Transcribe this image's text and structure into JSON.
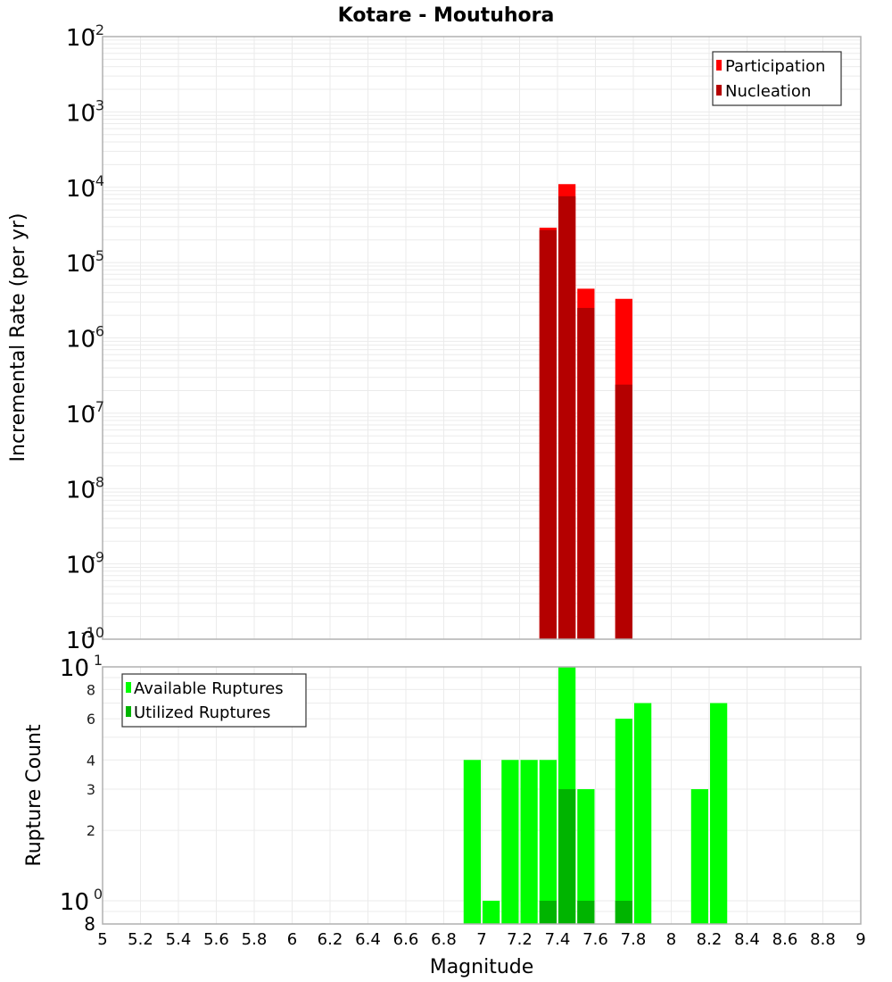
{
  "chart_data": [
    {
      "type": "bar",
      "title": "Kotare - Moutuhora",
      "xlabel": "Magnitude",
      "ylabel": "Incremental Rate (per yr)",
      "yscale": "log",
      "ylim": [
        1e-10,
        0.01
      ],
      "xlim": [
        5,
        9
      ],
      "grid": true,
      "legend_position": "top-right",
      "y_tick_labels": [
        "10^-2",
        "10^-3",
        "10^-4",
        "10^-5",
        "10^-6",
        "10^-7",
        "10^-8",
        "10^-9",
        "10^-10"
      ],
      "x": [
        7.35,
        7.45,
        7.55,
        7.75
      ],
      "series": [
        {
          "name": "Participation",
          "color": "#ff0000",
          "values": [
            2.9e-05,
            0.00011,
            4.5e-06,
            3.3e-06
          ]
        },
        {
          "name": "Nucleation",
          "color": "#b40000",
          "values": [
            2.7e-05,
            7.6e-05,
            2.5e-06,
            2.4e-07
          ]
        }
      ]
    },
    {
      "type": "bar",
      "title": "",
      "xlabel": "Magnitude",
      "ylabel": "Rupture Count",
      "yscale": "log",
      "ylim": [
        0.8,
        10
      ],
      "xlim": [
        5,
        9
      ],
      "grid": true,
      "legend_position": "top-left",
      "y_tick_labels": [
        "10^1",
        "8",
        "6",
        "4",
        "3",
        "2",
        "10^0",
        "8"
      ],
      "x": [
        6.95,
        7.05,
        7.15,
        7.25,
        7.35,
        7.45,
        7.55,
        7.75,
        7.85,
        8.15,
        8.25
      ],
      "series": [
        {
          "name": "Available Ruptures",
          "color": "#00ff00",
          "values": [
            4,
            1,
            4,
            4,
            4,
            10,
            3,
            6,
            7,
            3,
            7
          ]
        },
        {
          "name": "Utilized Ruptures",
          "color": "#00b400",
          "values": [
            0,
            0,
            0,
            0,
            1,
            3,
            1,
            1,
            0,
            0,
            0
          ]
        }
      ]
    }
  ],
  "x_ticks": [
    "5",
    "5.2",
    "5.4",
    "5.6",
    "5.8",
    "6",
    "6.2",
    "6.4",
    "6.6",
    "6.8",
    "7",
    "7.2",
    "7.4",
    "7.6",
    "7.8",
    "8",
    "8.2",
    "8.4",
    "8.6",
    "8.8",
    "9"
  ],
  "labels": {
    "title": "Kotare - Moutuhora",
    "top_ylabel": "Incremental Rate (per yr)",
    "bottom_ylabel": "Rupture Count",
    "xlabel": "Magnitude"
  },
  "legends": {
    "top": [
      {
        "label": "Participation",
        "color": "#ff0000"
      },
      {
        "label": "Nucleation",
        "color": "#b40000"
      }
    ],
    "bottom": [
      {
        "label": "Available Ruptures",
        "color": "#00ff00"
      },
      {
        "label": "Utilized Ruptures",
        "color": "#00b400"
      }
    ]
  }
}
